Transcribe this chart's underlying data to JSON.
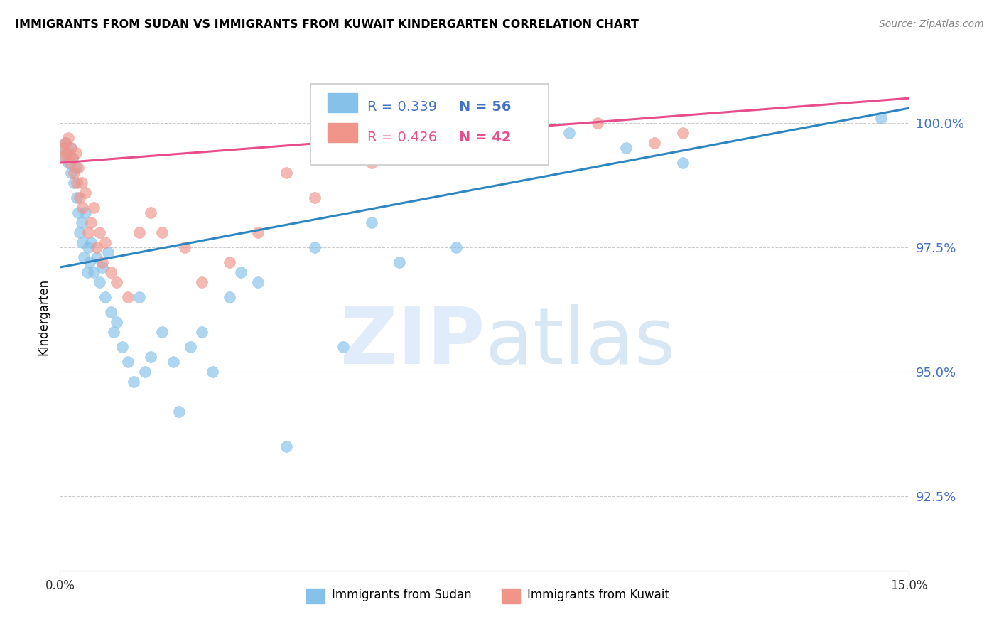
{
  "title": "IMMIGRANTS FROM SUDAN VS IMMIGRANTS FROM KUWAIT KINDERGARTEN CORRELATION CHART",
  "source": "Source: ZipAtlas.com",
  "ylabel": "Kindergarten",
  "yticks": [
    92.5,
    95.0,
    97.5,
    100.0
  ],
  "ytick_labels": [
    "92.5%",
    "95.0%",
    "97.5%",
    "100.0%"
  ],
  "xlim": [
    0.0,
    15.0
  ],
  "ylim": [
    91.0,
    101.2
  ],
  "legend_blue_label": "Immigrants from Sudan",
  "legend_pink_label": "Immigrants from Kuwait",
  "R_blue": 0.339,
  "N_blue": 56,
  "R_pink": 0.426,
  "N_pink": 42,
  "blue_color": "#85c1e9",
  "pink_color": "#f1948a",
  "blue_line_color": "#2e86c1",
  "pink_line_color": "#e74c8b",
  "blue_line_x0": 0.0,
  "blue_line_y0": 97.1,
  "blue_line_x1": 15.0,
  "blue_line_y1": 100.3,
  "pink_line_x0": 0.0,
  "pink_line_y0": 99.2,
  "pink_line_x1": 15.0,
  "pink_line_y1": 100.5,
  "sudan_x": [
    0.05,
    0.08,
    0.1,
    0.12,
    0.15,
    0.18,
    0.2,
    0.22,
    0.25,
    0.28,
    0.3,
    0.32,
    0.35,
    0.38,
    0.4,
    0.42,
    0.45,
    0.48,
    0.5,
    0.52,
    0.55,
    0.6,
    0.65,
    0.7,
    0.75,
    0.8,
    0.85,
    0.9,
    0.95,
    1.0,
    1.1,
    1.2,
    1.3,
    1.4,
    1.5,
    1.6,
    1.8,
    2.0,
    2.1,
    2.3,
    2.5,
    2.7,
    3.0,
    3.2,
    3.5,
    4.0,
    4.5,
    5.0,
    5.5,
    6.0,
    7.0,
    8.0,
    9.0,
    10.0,
    11.0,
    14.5
  ],
  "sudan_y": [
    99.5,
    99.3,
    99.6,
    99.4,
    99.2,
    99.5,
    99.0,
    99.3,
    98.8,
    99.1,
    98.5,
    98.2,
    97.8,
    98.0,
    97.6,
    97.3,
    98.2,
    97.0,
    97.5,
    97.2,
    97.6,
    97.0,
    97.3,
    96.8,
    97.1,
    96.5,
    97.4,
    96.2,
    95.8,
    96.0,
    95.5,
    95.2,
    94.8,
    96.5,
    95.0,
    95.3,
    95.8,
    95.2,
    94.2,
    95.5,
    95.8,
    95.0,
    96.5,
    97.0,
    96.8,
    93.5,
    97.5,
    95.5,
    98.0,
    97.2,
    97.5,
    99.5,
    99.8,
    99.5,
    99.2,
    100.1
  ],
  "kuwait_x": [
    0.05,
    0.08,
    0.1,
    0.12,
    0.15,
    0.18,
    0.2,
    0.22,
    0.25,
    0.28,
    0.3,
    0.32,
    0.35,
    0.38,
    0.4,
    0.45,
    0.5,
    0.55,
    0.6,
    0.65,
    0.7,
    0.75,
    0.8,
    0.9,
    1.0,
    1.2,
    1.4,
    1.6,
    1.8,
    2.2,
    2.5,
    3.0,
    3.5,
    4.0,
    4.5,
    5.5,
    6.5,
    7.5,
    8.5,
    9.5,
    10.5,
    11.0
  ],
  "kuwait_y": [
    99.5,
    99.3,
    99.6,
    99.4,
    99.7,
    99.2,
    99.5,
    99.3,
    99.0,
    99.4,
    98.8,
    99.1,
    98.5,
    98.8,
    98.3,
    98.6,
    97.8,
    98.0,
    98.3,
    97.5,
    97.8,
    97.2,
    97.6,
    97.0,
    96.8,
    96.5,
    97.8,
    98.2,
    97.8,
    97.5,
    96.8,
    97.2,
    97.8,
    99.0,
    98.5,
    99.2,
    99.5,
    99.8,
    99.4,
    100.0,
    99.6,
    99.8
  ]
}
